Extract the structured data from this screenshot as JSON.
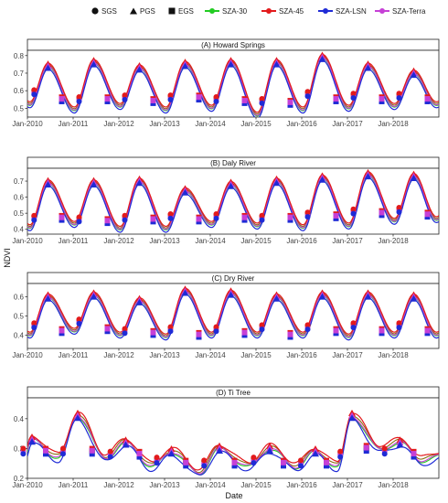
{
  "chart_data": {
    "type": "line",
    "xlabel": "Date",
    "ylabel": "NDVI",
    "x_tick_labels": [
      "Jan-2010",
      "Jan-2011",
      "Jan-2012",
      "Jan-2013",
      "Jan-2014",
      "Jan-2015",
      "Jan-2016",
      "Jan-2017",
      "Jan-2018"
    ],
    "xlim": [
      2010.0,
      2019.0
    ],
    "legend_markers": [
      "SGS",
      "PGS",
      "EGS"
    ],
    "series": [
      {
        "name": "SZA-30",
        "color": "#22cc22"
      },
      {
        "name": "SZA-45",
        "color": "#e31a1c"
      },
      {
        "name": "SZA-LSN",
        "color": "#1f2bd6"
      },
      {
        "name": "SZA-Terra",
        "color": "#c640d6"
      }
    ],
    "olive_color": "#8a6b12",
    "panels": [
      {
        "title": "(A) Howard Springs",
        "ylim": [
          0.45,
          0.83
        ],
        "yticks": [
          "0.5",
          "0.6",
          "0.7",
          "0.8"
        ],
        "ytick_values": [
          0.5,
          0.6,
          0.7,
          0.8
        ],
        "peak_year_offsets": [
          0.45,
          1.45,
          2.45,
          3.45,
          4.45,
          5.45,
          6.45,
          7.45,
          8.45
        ],
        "peak_values": [
          0.74,
          0.76,
          0.73,
          0.75,
          0.76,
          0.76,
          0.79,
          0.74,
          0.7
        ],
        "trough_values": [
          0.52,
          0.49,
          0.51,
          0.49,
          0.5,
          0.46,
          0.49,
          0.5,
          0.51,
          0.52
        ],
        "sgs_values": [
          0.59,
          0.55,
          0.56,
          0.56,
          0.55,
          0.54,
          0.58,
          0.57,
          0.57
        ],
        "egs_values": [
          0.55,
          0.55,
          0.54,
          0.56,
          0.54,
          0.53,
          0.55,
          0.55,
          0.55
        ]
      },
      {
        "title": "(B) Daly River",
        "ylim": [
          0.37,
          0.78
        ],
        "yticks": [
          "0.4",
          "0.5",
          "0.6",
          "0.7"
        ],
        "ytick_values": [
          0.4,
          0.5,
          0.6,
          0.7
        ],
        "peak_year_offsets": [
          0.45,
          1.45,
          2.45,
          3.45,
          4.45,
          5.45,
          6.45,
          7.45,
          8.45
        ],
        "peak_values": [
          0.69,
          0.69,
          0.7,
          0.64,
          0.68,
          0.7,
          0.72,
          0.74,
          0.73
        ],
        "trough_values": [
          0.41,
          0.43,
          0.4,
          0.4,
          0.43,
          0.42,
          0.41,
          0.42,
          0.45,
          0.46
        ],
        "sgs_values": [
          0.47,
          0.46,
          0.47,
          0.48,
          0.48,
          0.47,
          0.49,
          0.51,
          0.52
        ],
        "egs_values": [
          0.47,
          0.45,
          0.46,
          0.46,
          0.47,
          0.47,
          0.48,
          0.5,
          0.49
        ]
      },
      {
        "title": "(C) Dry River",
        "ylim": [
          0.33,
          0.67
        ],
        "yticks": [
          "0.4",
          "0.5",
          "0.6"
        ],
        "ytick_values": [
          0.4,
          0.5,
          0.6
        ],
        "peak_year_offsets": [
          0.45,
          1.45,
          2.45,
          3.45,
          4.45,
          5.45,
          6.45,
          7.45,
          8.45
        ],
        "peak_values": [
          0.6,
          0.61,
          0.58,
          0.63,
          0.62,
          0.6,
          0.61,
          0.61,
          0.6
        ],
        "trough_values": [
          0.4,
          0.42,
          0.4,
          0.39,
          0.4,
          0.4,
          0.4,
          0.39,
          0.4,
          0.4
        ],
        "sgs_values": [
          0.45,
          0.47,
          0.42,
          0.43,
          0.43,
          0.44,
          0.44,
          0.45,
          0.45
        ],
        "egs_values": [
          0.42,
          0.43,
          0.41,
          0.4,
          0.41,
          0.4,
          0.42,
          0.42,
          0.42
        ]
      },
      {
        "title": "(D) Ti Tree",
        "ylim": [
          0.2,
          0.47
        ],
        "yticks": [
          "0.2",
          "0.3",
          "0.4"
        ],
        "ytick_values": [
          0.2,
          0.3,
          0.4
        ],
        "peak_year_offsets": [
          0.1,
          1.1,
          2.15,
          3.15,
          4.2,
          5.3,
          6.3,
          7.1,
          8.15
        ],
        "peak_values": [
          0.33,
          0.41,
          0.32,
          0.29,
          0.3,
          0.3,
          0.29,
          0.41,
          0.32
        ],
        "trough_values": [
          0.24,
          0.27,
          0.27,
          0.24,
          0.22,
          0.24,
          0.24,
          0.24,
          0.3,
          0.26
        ],
        "sgs_values": [
          0.29,
          0.29,
          0.28,
          0.26,
          0.25,
          0.26,
          0.25,
          0.28,
          0.29
        ],
        "egs_values": [
          0.29,
          0.29,
          0.28,
          0.25,
          0.25,
          0.25,
          0.25,
          0.3,
          0.28
        ]
      }
    ]
  }
}
